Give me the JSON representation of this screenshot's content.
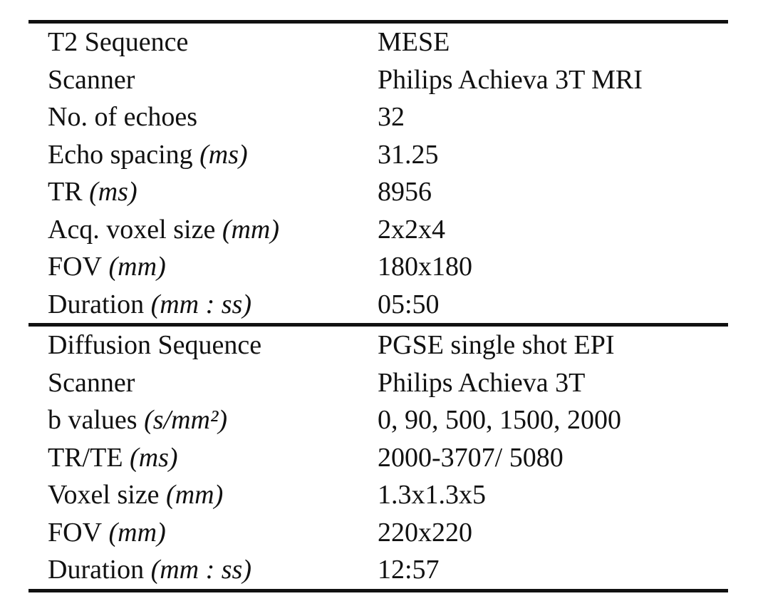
{
  "table": {
    "sections": [
      {
        "rows": [
          {
            "label": "T2 Sequence",
            "value": "MESE"
          },
          {
            "label": "Scanner",
            "value": "Philips Achieva 3T MRI"
          },
          {
            "label": "No. of echoes",
            "value": "32"
          },
          {
            "label": "Echo spacing",
            "unit": "(ms)",
            "value": "31.25"
          },
          {
            "label": "TR",
            "unit": "(ms)",
            "value": "8956"
          },
          {
            "label": "Acq. voxel size",
            "unit": "(mm)",
            "value": "2x2x4"
          },
          {
            "label": "FOV",
            "unit": "(mm)",
            "value": "180x180"
          },
          {
            "label": "Duration",
            "unit": "(mm : ss)",
            "value": "05:50"
          }
        ]
      },
      {
        "rows": [
          {
            "label": "Diffusion Sequence",
            "value": "PGSE single shot EPI"
          },
          {
            "label": "Scanner",
            "value": "Philips Achieva 3T"
          },
          {
            "label": "b values",
            "unit": "(s/mm²)",
            "value": "0, 90, 500, 1500, 2000"
          },
          {
            "label": "TR/TE",
            "unit": "(ms)",
            "value": "2000-3707/ 5080"
          },
          {
            "label": "Voxel size",
            "unit": "(mm)",
            "value": "1.3x1.3x5"
          },
          {
            "label": "FOV",
            "unit": "(mm)",
            "value": "220x220"
          },
          {
            "label": "Duration",
            "unit": "(mm : ss)",
            "value": "12:57"
          }
        ]
      }
    ]
  }
}
